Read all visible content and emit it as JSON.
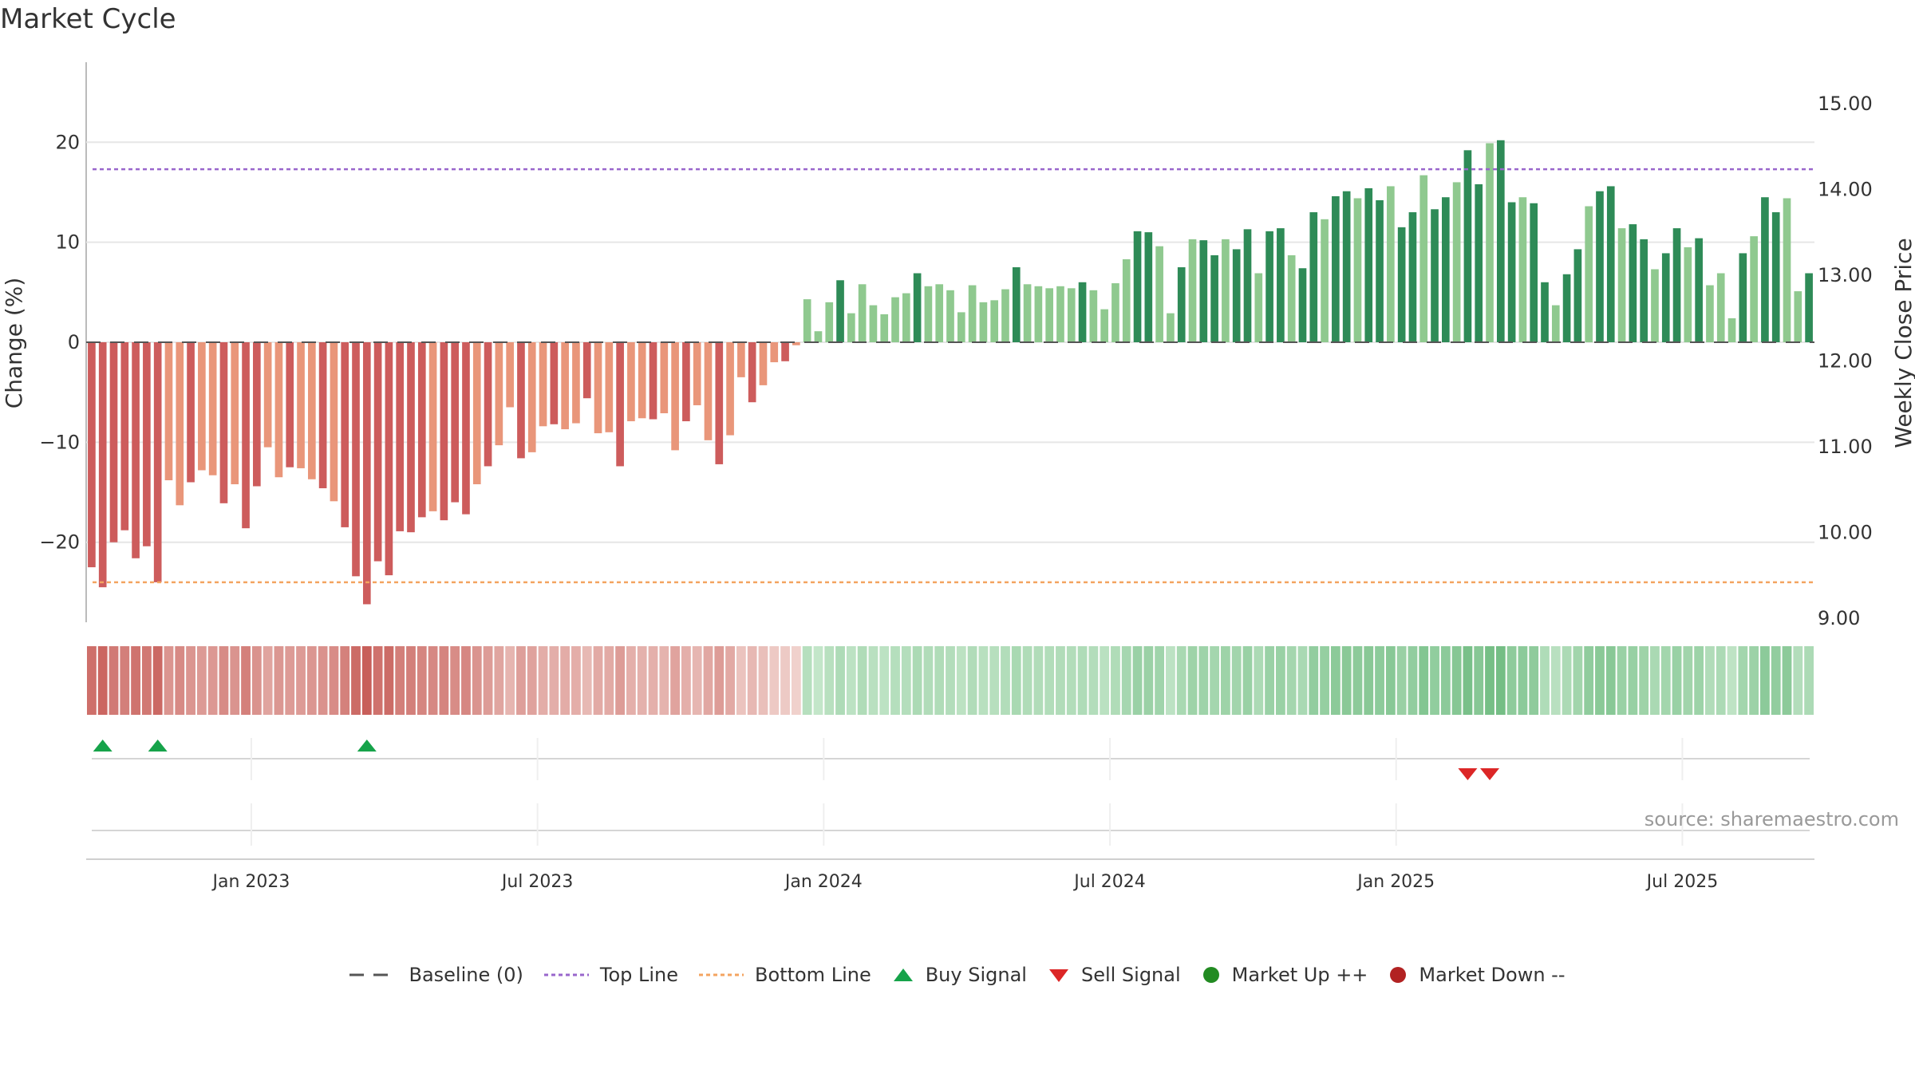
{
  "title": "Market Cycle",
  "source": "source: sharemaestro.com",
  "colors": {
    "down_strong": "#cd5c5c",
    "down_light": "#e9967a",
    "up_strong": "#2e8b57",
    "up_light": "#8fc98f",
    "top_line": "#9966cc",
    "bottom_line": "#f4a460",
    "baseline": "#555555",
    "buy": "#16a34a",
    "sell": "#dc2626",
    "market_up": "#228b22",
    "market_down": "#b22222"
  },
  "legend": [
    {
      "label": "Baseline (0)",
      "icon": "dash-line-icon"
    },
    {
      "label": "Top Line",
      "icon": "dotted-purple-line-icon"
    },
    {
      "label": "Bottom Line",
      "icon": "dotted-orange-line-icon"
    },
    {
      "label": "Buy Signal",
      "icon": "up-triangle-icon"
    },
    {
      "label": "Sell Signal",
      "icon": "down-triangle-icon"
    },
    {
      "label": "Market Up ++",
      "icon": "green-dot-icon"
    },
    {
      "label": "Market Down --",
      "icon": "red-dot-icon"
    }
  ],
  "chart_data": {
    "type": "bar",
    "ylabel": "Change (%)",
    "y2label": "Weekly Close Price",
    "ylim": [
      -28,
      28
    ],
    "y2lim": [
      9.0,
      15.0
    ],
    "yticks": [
      -20,
      -10,
      0,
      10,
      20
    ],
    "y2ticks": [
      "9.00",
      "10.00",
      "11.00",
      "12.00",
      "13.00",
      "14.00",
      "15.00"
    ],
    "xticks": [
      {
        "label": "Jan 2023",
        "index": 15
      },
      {
        "label": "Jul 2023",
        "index": 41
      },
      {
        "label": "Jan 2024",
        "index": 67
      },
      {
        "label": "Jul 2024",
        "index": 93
      },
      {
        "label": "Jan 2025",
        "index": 119
      },
      {
        "label": "Jul 2025",
        "index": 145
      }
    ],
    "top_line": 17.3,
    "bottom_line": -24.0,
    "values": [
      -22.5,
      -24.5,
      -20,
      -18.8,
      -21.6,
      -20.4,
      -24,
      -13.8,
      -16.3,
      -14,
      -12.8,
      -13.3,
      -16.1,
      -14.2,
      -18.6,
      -14.4,
      -10.5,
      -13.5,
      -12.5,
      -12.6,
      -13.7,
      -14.6,
      -15.9,
      -18.5,
      -23.4,
      -26.2,
      -21.9,
      -23.3,
      -18.9,
      -19,
      -17.5,
      -16.9,
      -17.8,
      -16,
      -17.2,
      -14.2,
      -12.4,
      -10.3,
      -6.5,
      -11.6,
      -11,
      -8.4,
      -8.2,
      -8.7,
      -8.1,
      -5.6,
      -9.1,
      -9,
      -12.4,
      -7.9,
      -7.6,
      -7.7,
      -7.1,
      -10.8,
      -7.9,
      -6.3,
      -9.8,
      -12.2,
      -9.3,
      -3.5,
      -6,
      -4.3,
      -2,
      -1.9,
      -0.3,
      4.3,
      1.1,
      4,
      6.2,
      2.9,
      5.8,
      3.7,
      2.8,
      4.5,
      4.9,
      6.9,
      5.6,
      5.8,
      5.2,
      3,
      5.7,
      4,
      4.2,
      5.3,
      7.5,
      5.8,
      5.6,
      5.4,
      5.6,
      5.4,
      6,
      5.2,
      3.3,
      5.9,
      8.3,
      11.1,
      11,
      9.6,
      2.9,
      7.5,
      10.3,
      10.2,
      8.7,
      10.3,
      9.3,
      11.3,
      6.9,
      11.1,
      11.4,
      8.7,
      7.4,
      13,
      12.3,
      14.6,
      15.1,
      14.4,
      15.4,
      14.2,
      15.6,
      11.5,
      13,
      16.7,
      13.3,
      14.5,
      16,
      19.2,
      15.8,
      19.9,
      20.2,
      14,
      14.5,
      13.9,
      6,
      3.7,
      6.8,
      9.3,
      13.6,
      15.1,
      15.6,
      11.4,
      11.8,
      10.3,
      7.3,
      8.9,
      11.4,
      9.5,
      10.4,
      5.7,
      6.9,
      2.4,
      8.9,
      10.6,
      14.5,
      13,
      14.4,
      5.1,
      6.9
    ],
    "buy_signals": [
      1,
      6,
      25
    ],
    "sell_signals": [
      125,
      127
    ],
    "market_up_points": [],
    "market_down_points": []
  }
}
